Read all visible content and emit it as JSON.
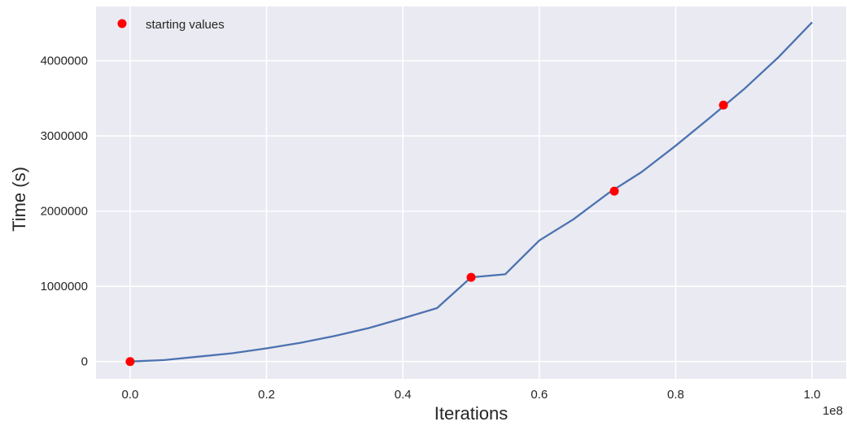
{
  "chart_data": {
    "type": "line",
    "title": "",
    "xlabel": "Iterations",
    "ylabel": "Time (s)",
    "x_offset_label": "1e8",
    "xlim": [
      -0.05,
      1.05
    ],
    "ylim": [
      -230000,
      4720000
    ],
    "x_ticks": [
      0.0,
      0.2,
      0.4,
      0.6,
      0.8,
      1.0
    ],
    "x_tick_labels": [
      "0.0",
      "0.2",
      "0.4",
      "0.6",
      "0.8",
      "1.0"
    ],
    "y_ticks": [
      0,
      1000000,
      2000000,
      3000000,
      4000000
    ],
    "y_tick_labels": [
      "0",
      "1000000",
      "2000000",
      "3000000",
      "4000000"
    ],
    "grid": true,
    "legend_placement": "top-left",
    "series": [
      {
        "kind": "line",
        "color": "#4c72b0",
        "x": [
          0.0,
          0.05,
          0.1,
          0.15,
          0.2,
          0.25,
          0.3,
          0.35,
          0.4,
          0.45,
          0.5,
          0.55,
          0.6,
          0.65,
          0.7,
          0.75,
          0.8,
          0.85,
          0.9,
          0.95,
          1.0
        ],
        "y": [
          0,
          20000,
          65000,
          110000,
          175000,
          250000,
          340000,
          445000,
          575000,
          710000,
          1120000,
          1160000,
          1610000,
          1890000,
          2230000,
          2520000,
          2870000,
          3240000,
          3620000,
          4040000,
          4510000
        ]
      },
      {
        "kind": "scatter",
        "name": "starting values",
        "color": "#ff0000",
        "x": [
          0.0,
          0.5,
          0.71,
          0.87
        ],
        "y": [
          0,
          1120000,
          2265000,
          3410000
        ]
      }
    ]
  }
}
